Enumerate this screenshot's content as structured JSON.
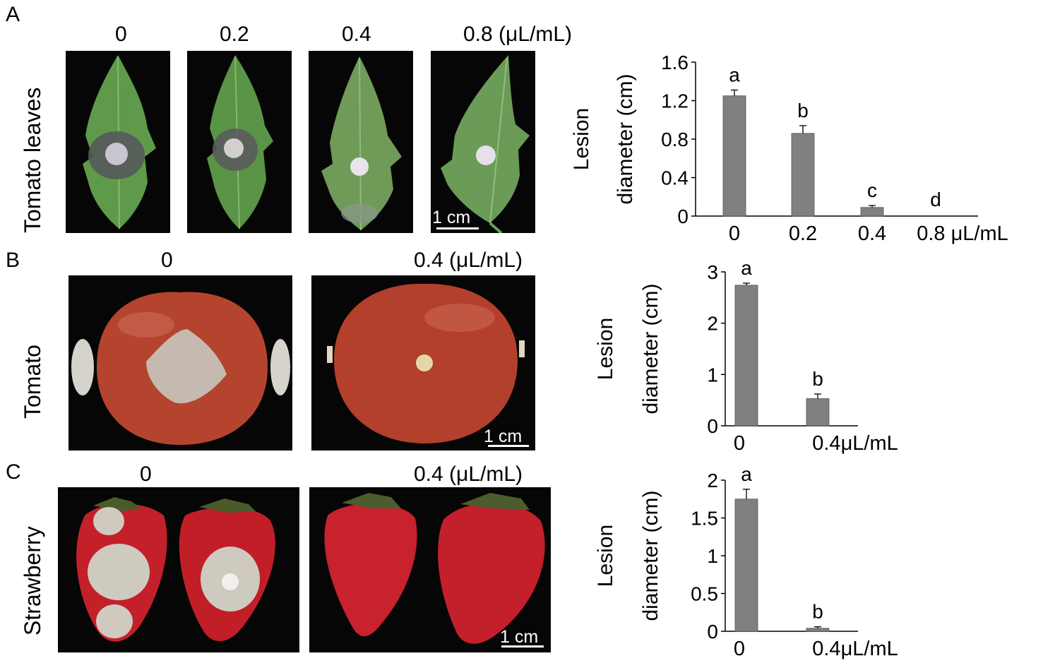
{
  "panels": [
    {
      "letter": "A",
      "row_label": "Tomato leaves",
      "conditions": [
        "0",
        "0.2",
        "0.4",
        "0.8 (μL/mL)"
      ],
      "scale_bar": "1 cm"
    },
    {
      "letter": "B",
      "row_label": "Tomato",
      "conditions": [
        "0",
        "0.4 (μL/mL)"
      ],
      "scale_bar": "1 cm"
    },
    {
      "letter": "C",
      "row_label": "Strawberry",
      "conditions": [
        "0",
        "0.4 (μL/mL)"
      ],
      "scale_bar": "1 cm"
    }
  ],
  "colors": {
    "bar": "#808080",
    "leaf": "#5f9a4b",
    "tomato": "#b5442f",
    "strawberry": "#c4202a",
    "mycelium": "#c8c6bf",
    "background": "#060606"
  },
  "chart_data": [
    {
      "type": "bar",
      "title": "",
      "ylabel_line1": "Lesion",
      "ylabel_line2": "diameter (cm)",
      "categories": [
        "0",
        "0.2",
        "0.4",
        "0.8 μL/mL"
      ],
      "values": [
        1.25,
        0.86,
        0.09,
        0.0
      ],
      "errors": [
        0.06,
        0.08,
        0.02,
        0.0
      ],
      "letters": [
        "a",
        "b",
        "c",
        "d"
      ],
      "ylim": [
        0,
        1.6
      ],
      "yticks": [
        "0",
        "0.4",
        "0.8",
        "1.2",
        "1.6"
      ],
      "grid": false
    },
    {
      "type": "bar",
      "title": "",
      "ylabel_line1": "Lesion",
      "ylabel_line2": "diameter (cm)",
      "categories": [
        "0",
        "0.4μL/mL"
      ],
      "values": [
        2.74,
        0.53
      ],
      "errors": [
        0.04,
        0.09
      ],
      "letters": [
        "a",
        "b"
      ],
      "ylim": [
        0,
        3
      ],
      "yticks": [
        "0",
        "1",
        "2",
        "3"
      ],
      "grid": false
    },
    {
      "type": "bar",
      "title": "",
      "ylabel_line1": "Lesion",
      "ylabel_line2": "diameter (cm)",
      "categories": [
        "0",
        "0.4μL/mL"
      ],
      "values": [
        1.75,
        0.04
      ],
      "errors": [
        0.13,
        0.02
      ],
      "letters": [
        "a",
        "b"
      ],
      "ylim": [
        0,
        2
      ],
      "yticks": [
        "0",
        "0.5",
        "1",
        "1.5",
        "2"
      ],
      "grid": false
    }
  ]
}
